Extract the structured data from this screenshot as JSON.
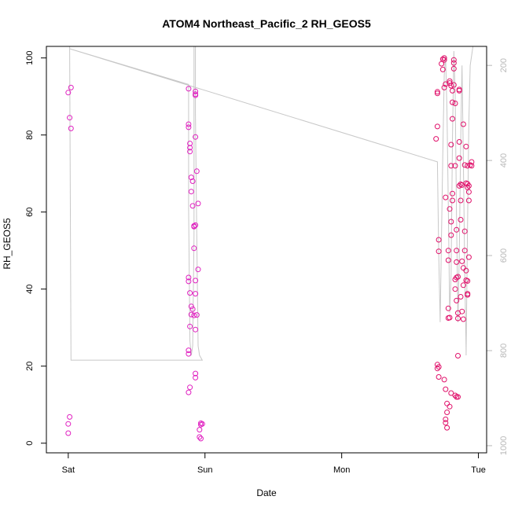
{
  "chart_data": {
    "type": "scatter",
    "title": "ATOM4 Northeast_Pacific_2 RH_GEOS5",
    "xlabel": "Date",
    "ylabel": "RH_GEOS5",
    "x_ticks": [
      {
        "x": 0,
        "label": "Sat"
      },
      {
        "x": 1,
        "label": "Sun"
      },
      {
        "x": 2,
        "label": "Mon"
      },
      {
        "x": 3,
        "label": "Tue"
      }
    ],
    "xlim": [
      -0.16,
      3.06
    ],
    "ylim": [
      -2.5,
      103
    ],
    "y_ticks": [
      0,
      20,
      40,
      60,
      80,
      100
    ],
    "y2_ticks": [
      200,
      400,
      600,
      800,
      1000
    ],
    "y2lim": [
      1015,
      160
    ],
    "grid": false,
    "series": [
      {
        "color": "#e020c0",
        "marker": "open-circle",
        "points": [
          [
            0.01,
            6.8
          ],
          [
            0.0,
            5.0
          ],
          [
            0.0,
            2.6
          ],
          [
            0.0,
            91.0
          ],
          [
            0.02,
            92.3
          ],
          [
            0.01,
            84.5
          ],
          [
            0.02,
            81.7
          ],
          [
            0.88,
            92.0
          ],
          [
            0.88,
            82.8
          ],
          [
            0.88,
            82.0
          ],
          [
            0.89,
            77.8
          ],
          [
            0.89,
            76.7
          ],
          [
            0.89,
            75.7
          ],
          [
            0.9,
            69.0
          ],
          [
            0.9,
            65.3
          ],
          [
            0.91,
            68.0
          ],
          [
            0.91,
            61.6
          ],
          [
            0.92,
            56.2
          ],
          [
            0.92,
            56.4
          ],
          [
            0.93,
            56.6
          ],
          [
            0.92,
            50.6
          ],
          [
            0.93,
            42.2
          ],
          [
            0.88,
            43.0
          ],
          [
            0.88,
            42.0
          ],
          [
            0.89,
            39.0
          ],
          [
            0.9,
            35.5
          ],
          [
            0.91,
            34.8
          ],
          [
            0.9,
            33.4
          ],
          [
            0.92,
            33.2
          ],
          [
            0.89,
            30.3
          ],
          [
            0.93,
            29.5
          ],
          [
            0.94,
            33.3
          ],
          [
            0.88,
            24.1
          ],
          [
            0.88,
            23.2
          ],
          [
            0.89,
            14.5
          ],
          [
            0.88,
            13.2
          ],
          [
            0.93,
            18.1
          ],
          [
            0.93,
            17.0
          ],
          [
            0.93,
            91.3
          ],
          [
            0.93,
            90.6
          ],
          [
            0.93,
            90.3
          ],
          [
            0.93,
            79.5
          ],
          [
            0.94,
            70.6
          ],
          [
            0.95,
            62.2
          ],
          [
            0.95,
            45.1
          ],
          [
            0.93,
            38.8
          ],
          [
            0.97,
            5.2
          ],
          [
            0.97,
            4.8
          ],
          [
            0.98,
            5.0
          ],
          [
            0.96,
            3.5
          ],
          [
            0.96,
            1.6
          ],
          [
            0.97,
            1.2
          ]
        ]
      },
      {
        "color": "#e0106a",
        "marker": "open-circle",
        "points": [
          [
            2.7,
            90.8
          ],
          [
            2.7,
            91.2
          ],
          [
            2.69,
            79.0
          ],
          [
            2.7,
            82.2
          ],
          [
            2.71,
            52.8
          ],
          [
            2.71,
            49.8
          ],
          [
            2.7,
            20.4
          ],
          [
            2.7,
            19.4
          ],
          [
            2.71,
            19.8
          ],
          [
            2.71,
            17.2
          ],
          [
            2.73,
            98.5
          ],
          [
            2.74,
            99.7
          ],
          [
            2.74,
            97.0
          ],
          [
            2.75,
            99.5
          ],
          [
            2.75,
            100.0
          ],
          [
            2.75,
            92.3
          ],
          [
            2.76,
            93.2
          ],
          [
            2.76,
            63.8
          ],
          [
            2.75,
            16.5
          ],
          [
            2.76,
            14.0
          ],
          [
            2.76,
            6.2
          ],
          [
            2.76,
            5.3
          ],
          [
            2.77,
            4.0
          ],
          [
            2.77,
            8.0
          ],
          [
            2.77,
            10.3
          ],
          [
            2.78,
            35.0
          ],
          [
            2.78,
            32.5
          ],
          [
            2.79,
            32.6
          ],
          [
            2.78,
            47.5
          ],
          [
            2.78,
            50.0
          ],
          [
            2.79,
            60.8
          ],
          [
            2.8,
            57.5
          ],
          [
            2.8,
            54.0
          ],
          [
            2.81,
            64.8
          ],
          [
            2.8,
            72.0
          ],
          [
            2.8,
            77.5
          ],
          [
            2.81,
            84.2
          ],
          [
            2.81,
            88.5
          ],
          [
            2.81,
            91.5
          ],
          [
            2.82,
            93.0
          ],
          [
            2.82,
            97.2
          ],
          [
            2.82,
            99.5
          ],
          [
            2.82,
            98.7
          ],
          [
            2.83,
            88.2
          ],
          [
            2.79,
            94.0
          ],
          [
            2.79,
            93.5
          ],
          [
            2.8,
            92.8
          ],
          [
            2.79,
            9.5
          ],
          [
            2.8,
            13.0
          ],
          [
            2.81,
            63.0
          ],
          [
            2.83,
            72.0
          ],
          [
            2.84,
            55.4
          ],
          [
            2.84,
            50.0
          ],
          [
            2.84,
            47.0
          ],
          [
            2.83,
            42.5
          ],
          [
            2.83,
            40.0
          ],
          [
            2.84,
            37.0
          ],
          [
            2.85,
            33.8
          ],
          [
            2.85,
            32.4
          ],
          [
            2.84,
            43.0
          ],
          [
            2.85,
            43.2
          ],
          [
            2.83,
            12.4
          ],
          [
            2.84,
            12.0
          ],
          [
            2.85,
            12.0
          ],
          [
            2.85,
            22.7
          ],
          [
            2.86,
            91.8
          ],
          [
            2.86,
            91.5
          ],
          [
            2.86,
            78.2
          ],
          [
            2.86,
            74.0
          ],
          [
            2.87,
            67.2
          ],
          [
            2.86,
            66.8
          ],
          [
            2.87,
            63.0
          ],
          [
            2.87,
            58.0
          ],
          [
            2.88,
            47.2
          ],
          [
            2.89,
            45.5
          ],
          [
            2.87,
            38.0
          ],
          [
            2.88,
            34.2
          ],
          [
            2.89,
            32.2
          ],
          [
            2.89,
            41.0
          ],
          [
            2.88,
            67.0
          ],
          [
            2.89,
            82.8
          ],
          [
            2.9,
            72.2
          ],
          [
            2.9,
            55.0
          ],
          [
            2.9,
            50.0
          ],
          [
            2.91,
            42.3
          ],
          [
            2.92,
            38.5
          ],
          [
            2.92,
            38.8
          ],
          [
            2.92,
            42.1
          ],
          [
            2.91,
            44.8
          ],
          [
            2.92,
            67.3
          ],
          [
            2.91,
            67.5
          ],
          [
            2.92,
            66.4
          ],
          [
            2.93,
            66.8
          ],
          [
            2.93,
            65.2
          ],
          [
            2.94,
            72.2
          ],
          [
            2.95,
            72.0
          ],
          [
            2.95,
            73.0
          ],
          [
            2.91,
            77.0
          ],
          [
            2.92,
            72.0
          ],
          [
            2.93,
            63.0
          ],
          [
            2.93,
            48.3
          ]
        ]
      }
    ],
    "secondary_line": {
      "color": "#c8c8c8",
      "axis": "right",
      "points": [
        [
          0.01,
          160
        ],
        [
          0.02,
          820
        ],
        [
          0.98,
          820
        ],
        [
          0.96,
          810
        ],
        [
          0.95,
          790
        ],
        [
          0.94,
          560
        ],
        [
          0.93,
          300
        ],
        [
          0.93,
          160
        ],
        [
          0.92,
          160
        ],
        [
          0.92,
          300
        ],
        [
          0.92,
          560
        ],
        [
          0.91,
          790
        ],
        [
          0.9,
          810
        ],
        [
          0.89,
          780
        ],
        [
          0.88,
          500
        ],
        [
          0.88,
          300
        ],
        [
          0.88,
          240
        ],
        [
          0.01,
          165
        ],
        [
          2.7,
          403
        ],
        [
          2.71,
          600
        ],
        [
          2.72,
          740
        ],
        [
          2.73,
          560
        ],
        [
          2.74,
          380
        ],
        [
          2.75,
          220
        ],
        [
          2.76,
          180
        ],
        [
          2.77,
          300
        ],
        [
          2.78,
          500
        ],
        [
          2.79,
          720
        ],
        [
          2.8,
          640
        ],
        [
          2.81,
          360
        ],
        [
          2.82,
          170
        ],
        [
          2.83,
          260
        ],
        [
          2.84,
          520
        ],
        [
          2.85,
          740
        ],
        [
          2.86,
          600
        ],
        [
          2.87,
          360
        ],
        [
          2.88,
          200
        ],
        [
          2.89,
          400
        ],
        [
          2.9,
          640
        ],
        [
          2.91,
          800
        ],
        [
          2.91,
          810
        ],
        [
          2.92,
          540
        ],
        [
          2.93,
          320
        ],
        [
          2.94,
          200
        ],
        [
          2.96,
          160
        ]
      ]
    }
  }
}
